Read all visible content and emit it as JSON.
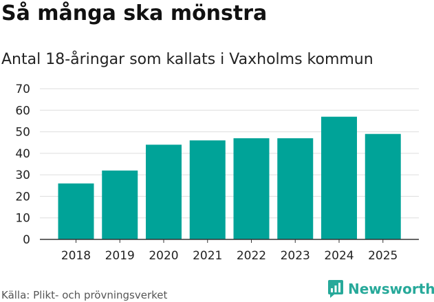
{
  "title": "Så många ska mönstra",
  "subtitle": "Antal 18-åringar som kallats i Vaxholms kommun",
  "source": "Källa: Plikt- och prövningsverket",
  "brand": {
    "name": "Newsworthy",
    "icon": "newsworthy-logo-icon",
    "color": "#27a99a"
  },
  "colors": {
    "bar": "#00a398",
    "grid": "#dddddd",
    "axis": "#333333"
  },
  "chart_data": {
    "type": "bar",
    "categories": [
      "2018",
      "2019",
      "2020",
      "2021",
      "2022",
      "2023",
      "2024",
      "2025"
    ],
    "values": [
      26,
      32,
      44,
      46,
      47,
      47,
      57,
      49
    ],
    "title": "",
    "xlabel": "",
    "ylabel": "",
    "ylim": [
      0,
      70
    ],
    "yticks": [
      0,
      10,
      20,
      30,
      40,
      50,
      60,
      70
    ],
    "grid": true,
    "legend": "none"
  }
}
